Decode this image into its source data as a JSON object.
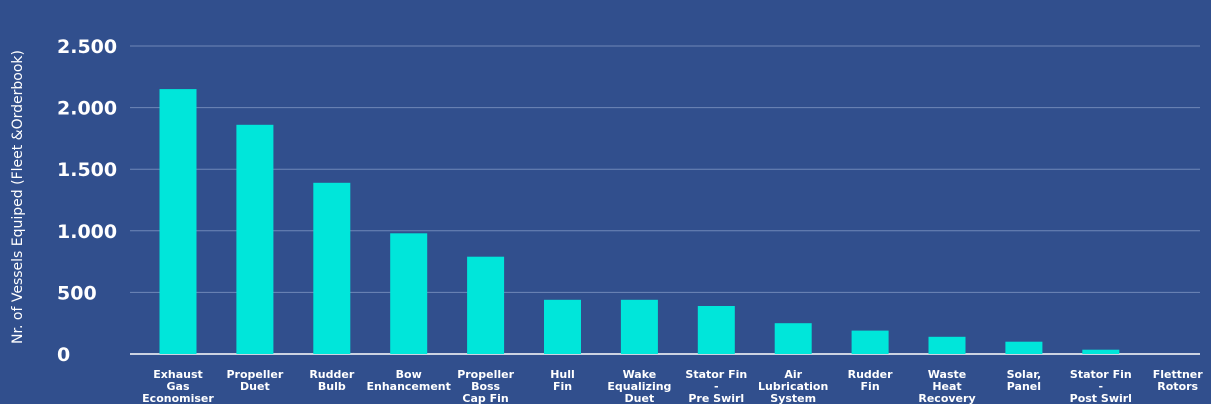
{
  "chart_data": {
    "type": "bar",
    "title": "",
    "xlabel": "",
    "ylabel": "Nr. of Vessels Equiped (Fleet &Orderbook)",
    "ylim": [
      0,
      2500
    ],
    "yticks": [
      0,
      500,
      1000,
      1500,
      2000,
      2500
    ],
    "ytick_labels": [
      "0",
      "500",
      "1.000",
      "1.500",
      "2.000",
      "2.500"
    ],
    "grid": true,
    "bar_color": "#00e6da",
    "background_color": "#314f8d",
    "grid_color": "#6f87b8",
    "categories": [
      [
        "Exhaust",
        "Gas",
        "Economiser"
      ],
      [
        "Propeller",
        "Duet"
      ],
      [
        "Rudder",
        "Bulb"
      ],
      [
        "Bow",
        "Enhancement"
      ],
      [
        "Propeller",
        "Boss",
        "Cap Fin"
      ],
      [
        "Hull",
        "Fin"
      ],
      [
        "Wake",
        "Equalizing",
        "Duet"
      ],
      [
        "Stator Fin",
        "-",
        "Pre Swirl"
      ],
      [
        "Air",
        "Lubrication",
        "System"
      ],
      [
        "Rudder",
        "Fin"
      ],
      [
        "Waste",
        "Heat",
        "Recovery"
      ],
      [
        "Solar,",
        "Panel"
      ],
      [
        "Stator Fin",
        "-",
        "Post Swirl"
      ],
      [
        "Flettner",
        "Rotors"
      ]
    ],
    "values": [
      2150,
      1860,
      1390,
      980,
      790,
      440,
      440,
      390,
      250,
      190,
      140,
      100,
      35,
      0
    ]
  }
}
